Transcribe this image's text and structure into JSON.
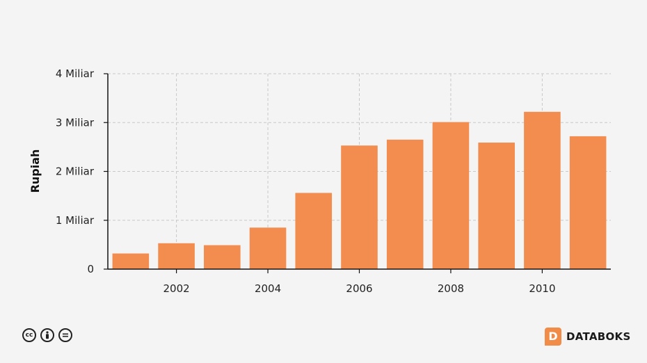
{
  "chart_data": {
    "type": "bar",
    "x": [
      2001,
      2002,
      2003,
      2004,
      2005,
      2006,
      2007,
      2008,
      2009,
      2010,
      2011
    ],
    "values": [
      0.32,
      0.53,
      0.49,
      0.85,
      1.56,
      2.53,
      2.65,
      3.01,
      2.59,
      3.22,
      2.72
    ],
    "value_unit": "Miliar",
    "xticks": [
      2002,
      2004,
      2006,
      2008,
      2010
    ],
    "yticks": [
      {
        "value": 0,
        "label": "0"
      },
      {
        "value": 1,
        "label": "1 Miliar"
      },
      {
        "value": 2,
        "label": "2 Miliar"
      },
      {
        "value": 3,
        "label": "3 Miliar"
      },
      {
        "value": 4,
        "label": "4 Miliar"
      }
    ],
    "ylim": [
      0,
      4
    ],
    "xlim": [
      2000.5,
      2011.5
    ],
    "ylabel": "Rupiah",
    "xlabel": "",
    "title": "",
    "grid": true,
    "colors": {
      "bar": "#f28c4f",
      "grid": "#c8c8c8",
      "axis": "#111111"
    }
  },
  "footer": {
    "license_icons": [
      "cc-icon",
      "by-icon",
      "nd-icon"
    ],
    "brand": "DATABOKS",
    "brand_logo_letter": "D"
  }
}
